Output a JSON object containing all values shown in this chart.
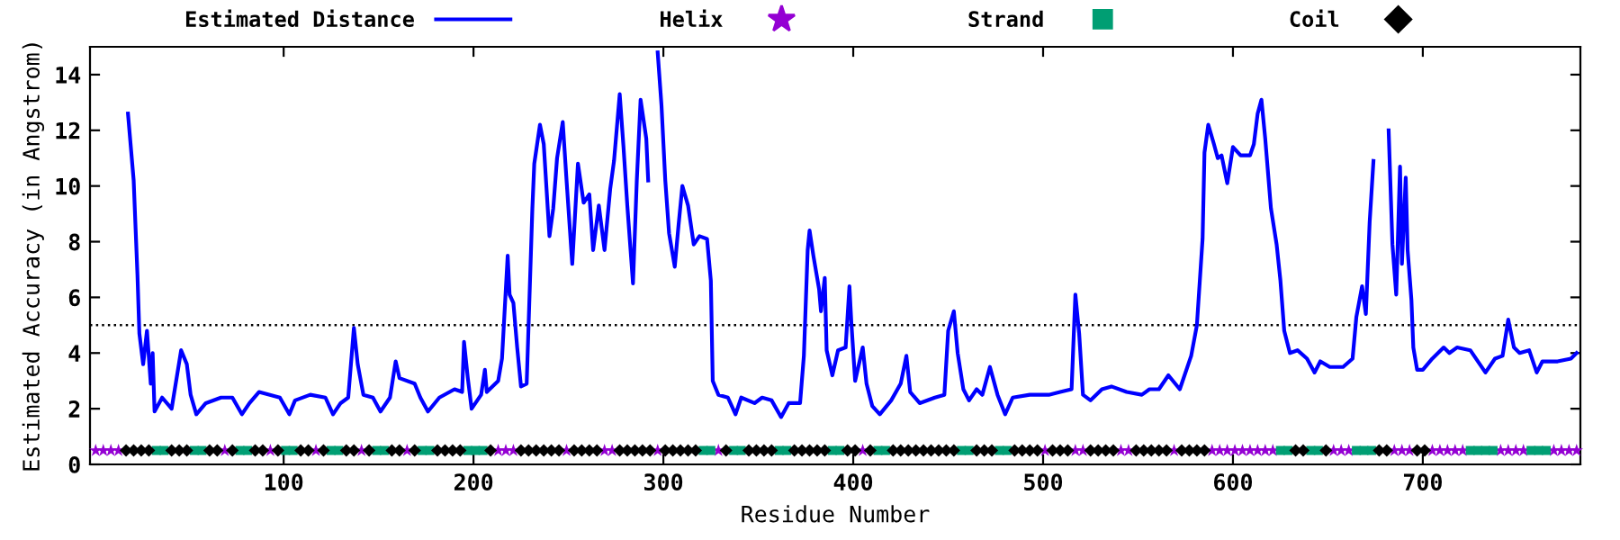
{
  "chart_data": {
    "type": "line",
    "xlabel": "Residue Number",
    "ylabel": "Estimated Accuracy (in Angstrom)",
    "xlim": [
      -2,
      783
    ],
    "xticks": [
      100,
      200,
      300,
      400,
      500,
      600,
      700
    ],
    "ylim": [
      0,
      15
    ],
    "yticks": [
      0,
      2,
      4,
      6,
      8,
      10,
      12,
      14
    ],
    "grid": false,
    "legend": "top",
    "ref_lines": [
      {
        "axis": "y",
        "value": 5,
        "color": "#000000",
        "line_style": "dotted"
      }
    ],
    "series": [
      {
        "name": "Estimated Distance",
        "color": "#0000ff",
        "marker": "none",
        "x": [
          18,
          21,
          23,
          24,
          26,
          28,
          30,
          31,
          32,
          36,
          41,
          46,
          49,
          51,
          54,
          59,
          67,
          73,
          78,
          82,
          87,
          98,
          103,
          106,
          114,
          122,
          126,
          130,
          134,
          137,
          139,
          142,
          147,
          151,
          156,
          159,
          161,
          169,
          172,
          176,
          182,
          190,
          194,
          195,
          197,
          199,
          204,
          206,
          207,
          213,
          215,
          218,
          219,
          221,
          223,
          225,
          228,
          231,
          232,
          235,
          237,
          240,
          242,
          244,
          247,
          249,
          252,
          255,
          258,
          261,
          263,
          266,
          269,
          272,
          274,
          277,
          279,
          281,
          284,
          286,
          288,
          291,
          292,
          295,
          297,
          299,
          301,
          303,
          306,
          308,
          310,
          313,
          316,
          319,
          323,
          325,
          326,
          329,
          334,
          338,
          341,
          348,
          352,
          357,
          362,
          366,
          372,
          374,
          376,
          377,
          379,
          382,
          383,
          385,
          386,
          389,
          392,
          396,
          398,
          399,
          401,
          405,
          407,
          410,
          414,
          420,
          425,
          428,
          430,
          435,
          443,
          448,
          450,
          453,
          455,
          458,
          461,
          465,
          468,
          472,
          476,
          480,
          484,
          493,
          503,
          509,
          515,
          517,
          519,
          521,
          525,
          531,
          536,
          544,
          552,
          556,
          561,
          566,
          572,
          578,
          581,
          584,
          585,
          587,
          590,
          592,
          594,
          597,
          600,
          604,
          609,
          611,
          613,
          615,
          617,
          620,
          623,
          625,
          627,
          630,
          634,
          639,
          643,
          646,
          651,
          658,
          663,
          665,
          668,
          670,
          672,
          674,
          676,
          681,
          682,
          684,
          686,
          688,
          689,
          691,
          692,
          694,
          695,
          697,
          700,
          705,
          711,
          714,
          718,
          725,
          730,
          733,
          738,
          742,
          745,
          748,
          751,
          756,
          760,
          763,
          771,
          778,
          781
        ],
        "values": [
          12.6,
          10.2,
          6.8,
          4.7,
          3.6,
          4.8,
          2.9,
          4.0,
          1.9,
          2.4,
          2.0,
          4.1,
          3.6,
          2.5,
          1.8,
          2.2,
          2.4,
          2.4,
          1.8,
          2.2,
          2.6,
          2.4,
          1.8,
          2.3,
          2.5,
          2.4,
          1.8,
          2.2,
          2.4,
          4.9,
          3.6,
          2.5,
          2.4,
          1.9,
          2.4,
          3.7,
          3.1,
          2.9,
          2.4,
          1.9,
          2.4,
          2.7,
          2.6,
          4.4,
          3.1,
          2.0,
          2.5,
          3.4,
          2.6,
          3.0,
          3.8,
          7.5,
          6.1,
          5.8,
          4.2,
          2.8,
          2.9,
          9.2,
          10.8,
          12.2,
          11.5,
          8.2,
          9.2,
          11.0,
          12.3,
          10.2,
          7.2,
          10.8,
          9.4,
          9.7,
          7.7,
          9.3,
          7.7,
          9.9,
          10.9,
          13.3,
          11.4,
          9.3,
          6.5,
          10.2,
          13.1,
          11.7,
          10.2,
          null,
          14.8,
          12.9,
          10.2,
          8.3,
          7.1,
          8.6,
          10.0,
          9.3,
          7.9,
          8.2,
          8.1,
          6.6,
          3.0,
          2.5,
          2.4,
          1.8,
          2.4,
          2.2,
          2.4,
          2.3,
          1.7,
          2.2,
          2.2,
          3.9,
          7.7,
          8.4,
          7.5,
          6.3,
          5.5,
          6.7,
          4.1,
          3.2,
          4.1,
          4.2,
          6.4,
          5.1,
          3.0,
          4.2,
          2.9,
          2.1,
          1.8,
          2.3,
          2.9,
          3.9,
          2.6,
          2.2,
          2.4,
          2.5,
          4.8,
          5.5,
          4.0,
          2.7,
          2.3,
          2.7,
          2.5,
          3.5,
          2.5,
          1.8,
          2.4,
          2.5,
          2.5,
          2.6,
          2.7,
          6.1,
          4.7,
          2.5,
          2.3,
          2.7,
          2.8,
          2.6,
          2.5,
          2.7,
          2.7,
          3.2,
          2.7,
          3.9,
          5.0,
          8.1,
          11.2,
          12.2,
          11.5,
          11.0,
          11.1,
          10.1,
          11.4,
          11.1,
          11.1,
          11.5,
          12.6,
          13.1,
          11.7,
          9.2,
          7.9,
          6.6,
          4.8,
          4.0,
          4.1,
          3.8,
          3.3,
          3.7,
          3.5,
          3.5,
          3.8,
          5.3,
          6.4,
          5.4,
          8.7,
          10.9,
          null,
          null,
          12.0,
          7.9,
          6.1,
          10.7,
          7.2,
          10.3,
          7.7,
          5.9,
          4.2,
          3.4,
          3.4,
          3.8,
          4.2,
          4.0,
          4.2,
          4.1,
          3.6,
          3.3,
          3.8,
          3.9,
          5.2,
          4.2,
          4.0,
          4.1,
          3.3,
          3.7,
          3.7,
          3.8,
          4.0
        ]
      },
      {
        "name": "Helix",
        "type": "scatter",
        "color": "#9400d3",
        "marker": "star",
        "x": [
          1,
          5,
          9,
          13,
          69,
          93,
          117,
          141,
          165,
          213,
          217,
          221,
          249,
          269,
          273,
          297,
          329,
          405,
          501,
          517,
          521,
          541,
          545,
          569,
          589,
          593,
          597,
          601,
          605,
          609,
          613,
          617,
          621,
          653,
          657,
          661,
          685,
          689,
          693,
          705,
          709,
          713,
          717,
          721,
          741,
          745,
          749,
          753,
          769,
          773,
          777,
          781
        ],
        "values": [
          0.5,
          0.5,
          0.5,
          0.5,
          0.5,
          0.5,
          0.5,
          0.5,
          0.5,
          0.5,
          0.5,
          0.5,
          0.5,
          0.5,
          0.5,
          0.5,
          0.5,
          0.5,
          0.5,
          0.5,
          0.5,
          0.5,
          0.5,
          0.5,
          0.5,
          0.5,
          0.5,
          0.5,
          0.5,
          0.5,
          0.5,
          0.5,
          0.5,
          0.5,
          0.5,
          0.5,
          0.5,
          0.5,
          0.5,
          0.5,
          0.5,
          0.5,
          0.5,
          0.5,
          0.5,
          0.5,
          0.5,
          0.5,
          0.5,
          0.5,
          0.5,
          0.5
        ]
      },
      {
        "name": "Strand",
        "type": "scatter",
        "color": "#009e73",
        "marker": "square",
        "x": [
          33,
          37,
          53,
          57,
          77,
          81,
          101,
          105,
          125,
          129,
          149,
          153,
          173,
          177,
          197,
          201,
          205,
          321,
          325,
          337,
          341,
          361,
          365,
          389,
          393,
          413,
          417,
          457,
          461,
          477,
          481,
          625,
          629,
          641,
          645,
          665,
          669,
          673,
          725,
          729,
          733,
          737,
          757,
          761,
          765
        ],
        "values": [
          0.5,
          0.5,
          0.5,
          0.5,
          0.5,
          0.5,
          0.5,
          0.5,
          0.5,
          0.5,
          0.5,
          0.5,
          0.5,
          0.5,
          0.5,
          0.5,
          0.5,
          0.5,
          0.5,
          0.5,
          0.5,
          0.5,
          0.5,
          0.5,
          0.5,
          0.5,
          0.5,
          0.5,
          0.5,
          0.5,
          0.5,
          0.5,
          0.5,
          0.5,
          0.5,
          0.5,
          0.5,
          0.5,
          0.5,
          0.5,
          0.5,
          0.5,
          0.5,
          0.5,
          0.5
        ]
      },
      {
        "name": "Coil",
        "type": "scatter",
        "color": "#000000",
        "marker": "diamond",
        "x": [
          17,
          21,
          25,
          29,
          41,
          45,
          49,
          61,
          65,
          73,
          85,
          89,
          97,
          109,
          113,
          121,
          133,
          137,
          145,
          157,
          161,
          169,
          181,
          185,
          189,
          193,
          209,
          225,
          229,
          233,
          237,
          241,
          245,
          253,
          257,
          261,
          265,
          277,
          281,
          285,
          289,
          293,
          301,
          305,
          309,
          313,
          317,
          333,
          345,
          349,
          353,
          357,
          369,
          373,
          377,
          381,
          385,
          397,
          401,
          409,
          421,
          425,
          429,
          433,
          437,
          441,
          445,
          449,
          453,
          465,
          469,
          473,
          485,
          489,
          493,
          497,
          505,
          509,
          513,
          525,
          529,
          533,
          537,
          549,
          553,
          557,
          561,
          565,
          573,
          577,
          581,
          585,
          633,
          637,
          649,
          677,
          681,
          697,
          701
        ],
        "values": [
          0.5,
          0.5,
          0.5,
          0.5,
          0.5,
          0.5,
          0.5,
          0.5,
          0.5,
          0.5,
          0.5,
          0.5,
          0.5,
          0.5,
          0.5,
          0.5,
          0.5,
          0.5,
          0.5,
          0.5,
          0.5,
          0.5,
          0.5,
          0.5,
          0.5,
          0.5,
          0.5,
          0.5,
          0.5,
          0.5,
          0.5,
          0.5,
          0.5,
          0.5,
          0.5,
          0.5,
          0.5,
          0.5,
          0.5,
          0.5,
          0.5,
          0.5,
          0.5,
          0.5,
          0.5,
          0.5,
          0.5,
          0.5,
          0.5,
          0.5,
          0.5,
          0.5,
          0.5,
          0.5,
          0.5,
          0.5,
          0.5,
          0.5,
          0.5,
          0.5,
          0.5,
          0.5,
          0.5,
          0.5,
          0.5,
          0.5,
          0.5,
          0.5,
          0.5,
          0.5,
          0.5,
          0.5,
          0.5,
          0.5,
          0.5,
          0.5,
          0.5,
          0.5,
          0.5,
          0.5,
          0.5,
          0.5,
          0.5,
          0.5,
          0.5,
          0.5,
          0.5,
          0.5,
          0.5,
          0.5,
          0.5,
          0.5,
          0.5,
          0.5,
          0.5,
          0.5,
          0.5,
          0.5,
          0.5
        ]
      }
    ]
  }
}
